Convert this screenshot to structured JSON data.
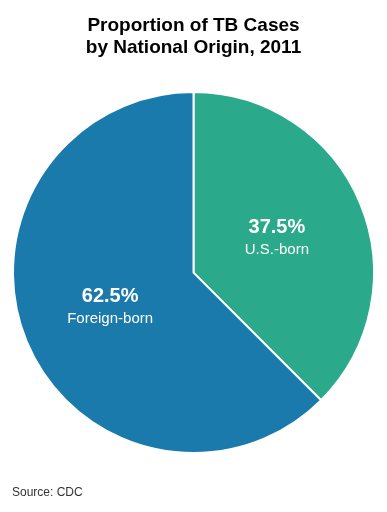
{
  "chart_data": {
    "type": "pie",
    "title": "Proportion of TB Cases\nby National Origin, 2011",
    "categories": [
      "U.S.-born",
      "Foreign-born"
    ],
    "values": [
      37.5,
      62.5
    ],
    "value_labels": [
      "37.5%",
      "62.5%"
    ],
    "data_labels": true,
    "colors": [
      "#2aaa8a",
      "#1a7aab"
    ],
    "legend": false,
    "annotations": [
      "Source: CDC"
    ]
  }
}
